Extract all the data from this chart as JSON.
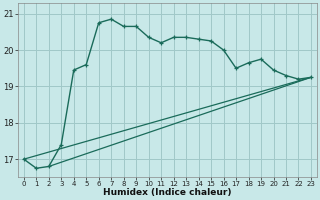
{
  "title": "",
  "xlabel": "Humidex (Indice chaleur)",
  "bg_color": "#c8e8e8",
  "grid_color": "#a0c8c8",
  "line_color": "#1a6b5a",
  "xlim": [
    -0.5,
    23.5
  ],
  "ylim": [
    16.5,
    21.3
  ],
  "yticks": [
    17,
    18,
    19,
    20,
    21
  ],
  "xticks": [
    0,
    1,
    2,
    3,
    4,
    5,
    6,
    7,
    8,
    9,
    10,
    11,
    12,
    13,
    14,
    15,
    16,
    17,
    18,
    19,
    20,
    21,
    22,
    23
  ],
  "series1_x": [
    0,
    1,
    2,
    3,
    4,
    5,
    6,
    7,
    8,
    9,
    10,
    11,
    12,
    13,
    14,
    15,
    16,
    17,
    18,
    19,
    20,
    21,
    22,
    23
  ],
  "series1_y": [
    17.0,
    16.75,
    16.8,
    17.4,
    19.45,
    19.6,
    20.75,
    20.85,
    20.65,
    20.65,
    20.35,
    20.2,
    20.35,
    20.35,
    20.3,
    20.25,
    20.0,
    19.5,
    19.65,
    19.75,
    19.45,
    19.3,
    19.2,
    19.25
  ],
  "series2_x": [
    0,
    23
  ],
  "series2_y": [
    17.0,
    19.25
  ],
  "series3_x": [
    2,
    23
  ],
  "series3_y": [
    16.8,
    19.25
  ]
}
